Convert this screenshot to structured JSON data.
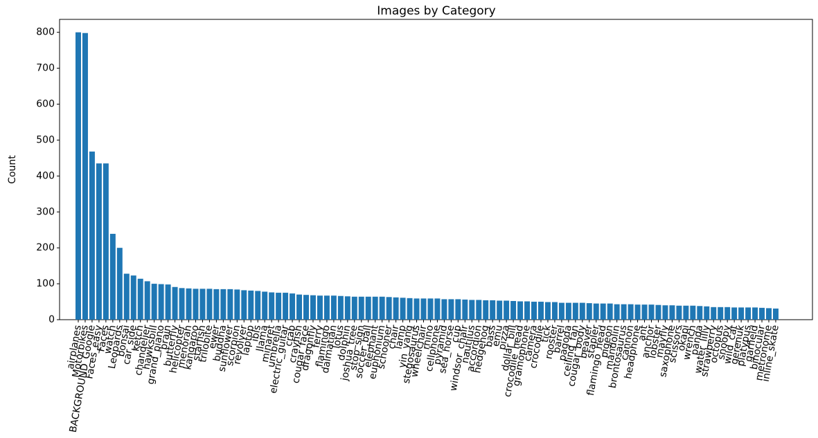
{
  "chart_data": {
    "type": "bar",
    "title": "Images by Category",
    "y_label": "Count",
    "categories": [
      "airplanes",
      "Motorbikes",
      "BACKGROUND_Google",
      "Faces_easy",
      "Faces",
      "watch",
      "Leopards",
      "bonsai",
      "car_side",
      "ketch",
      "chandelier",
      "hawksbill",
      "grand_piano",
      "brain",
      "butterfly",
      "helicopter",
      "menorah",
      "kangaroo",
      "starfish",
      "trilobite",
      "ewer",
      "buddha",
      "sunflower",
      "scorpion",
      "revolver",
      "laptop",
      "ibis",
      "llama",
      "minaret",
      "umbrella",
      "electric_guitar",
      "crab",
      "crayfish",
      "cougar_face",
      "dragonfly",
      "ferry",
      "flamingo",
      "dalmatian",
      "lotus",
      "dolphin",
      "joshua_tree",
      "stop_sign",
      "soccer_ball",
      "elephant",
      "euphonium",
      "schooner",
      "chair",
      "lamp",
      "yin_yang",
      "stegosaurus",
      "wheelchair",
      "rhino",
      "cellphone",
      "pyramid",
      "sea_horse",
      "cup",
      "windsor_chair",
      "nautilus",
      "accordion",
      "hedgehog",
      "bass",
      "emu",
      "pizza",
      "dollar_bill",
      "crocodile_head",
      "gramophone",
      "camera",
      "crocodile",
      "tick",
      "rooster",
      "barrel",
      "pagoda",
      "ceiling_fan",
      "cougar_body",
      "beaver",
      "stapler",
      "flamingo_head",
      "pigeon",
      "mandolin",
      "brontosaurus",
      "cannon",
      "headphone",
      "ant",
      "anchor",
      "lobster",
      "mayfly",
      "saxophone",
      "scissors",
      "okapi",
      "wrench",
      "panda",
      "water_lilly",
      "strawberry",
      "octopus",
      "snoopy",
      "wild_cat",
      "gerenuk",
      "platypus",
      "garfield",
      "binocular",
      "metronome",
      "inline_skate"
    ],
    "values": [
      800,
      798,
      468,
      435,
      435,
      239,
      200,
      128,
      123,
      114,
      107,
      100,
      99,
      98,
      91,
      88,
      87,
      86,
      86,
      86,
      85,
      85,
      85,
      84,
      82,
      81,
      80,
      78,
      76,
      75,
      75,
      73,
      70,
      69,
      68,
      67,
      67,
      67,
      66,
      65,
      64,
      64,
      64,
      64,
      64,
      63,
      62,
      61,
      60,
      59,
      59,
      59,
      59,
      57,
      57,
      57,
      56,
      55,
      55,
      54,
      54,
      53,
      53,
      52,
      51,
      51,
      50,
      50,
      49,
      49,
      47,
      47,
      47,
      47,
      46,
      45,
      45,
      45,
      43,
      43,
      43,
      42,
      42,
      42,
      41,
      40,
      40,
      39,
      39,
      39,
      38,
      37,
      35,
      35,
      35,
      34,
      34,
      34,
      34,
      33,
      32,
      31
    ],
    "color": "#1f77b4",
    "ylim": [
      0,
      836
    ],
    "yticks": [
      0,
      100,
      200,
      300,
      400,
      500,
      600,
      700,
      800
    ]
  }
}
